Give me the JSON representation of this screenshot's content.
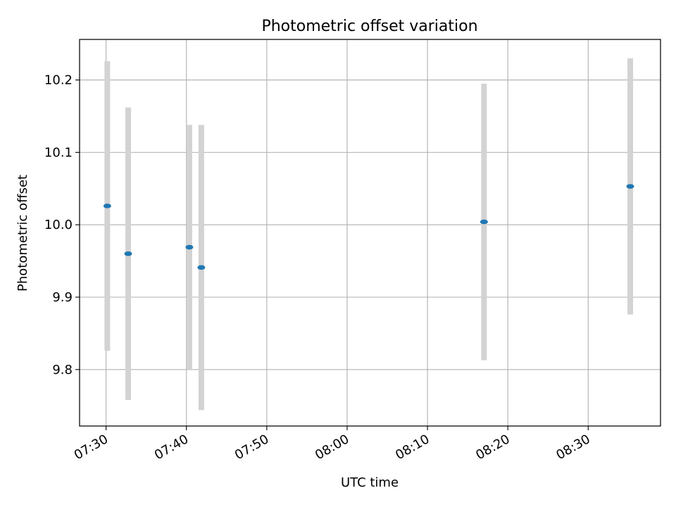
{
  "chart_data": {
    "type": "scatter",
    "title": "Photometric offset variation",
    "xlabel": "UTC time",
    "ylabel": "Photometric offset",
    "xlim": [
      "07:26:42",
      "08:39:00"
    ],
    "ylim": [
      9.722,
      10.256
    ],
    "x_ticks": [
      "07:30",
      "07:40",
      "07:50",
      "08:00",
      "08:10",
      "08:20",
      "08:30"
    ],
    "y_ticks": [
      9.8,
      9.9,
      10.0,
      10.1,
      10.2
    ],
    "grid": true,
    "colors": {
      "point": "#1f77b4",
      "errorbar": "#d3d3d3",
      "grid": "#b0b0b0"
    },
    "series": [
      {
        "points": [
          {
            "x": "07:30:09",
            "y": 10.026,
            "err": 0.2
          },
          {
            "x": "07:32:45",
            "y": 9.96,
            "err": 0.202
          },
          {
            "x": "07:40:22",
            "y": 9.969,
            "err": 0.169
          },
          {
            "x": "07:41:51",
            "y": 9.941,
            "err": 0.197
          },
          {
            "x": "08:17:02",
            "y": 10.004,
            "err": 0.191
          },
          {
            "x": "08:35:14",
            "y": 10.053,
            "err": 0.177
          }
        ]
      }
    ]
  }
}
